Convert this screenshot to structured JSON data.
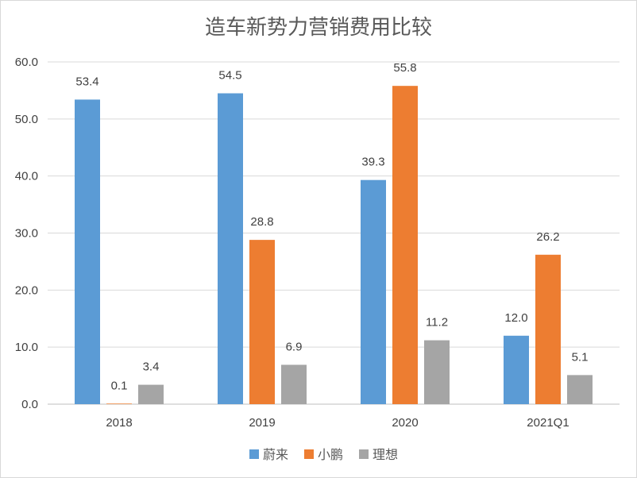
{
  "chart_data": {
    "type": "bar",
    "title": "造车新势力营销费用比较",
    "categories": [
      "2018",
      "2019",
      "2020",
      "2021Q1"
    ],
    "series": [
      {
        "name": "蔚来",
        "color": "#5b9bd5",
        "values": [
          53.4,
          54.5,
          39.3,
          12.0
        ]
      },
      {
        "name": "小鹏",
        "color": "#ed7d31",
        "values": [
          0.1,
          28.8,
          55.8,
          26.2
        ]
      },
      {
        "name": "理想",
        "color": "#a5a5a5",
        "values": [
          3.4,
          6.9,
          11.2,
          5.1
        ]
      }
    ],
    "ylim": [
      0,
      60
    ],
    "yticks": [
      "0.0",
      "10.0",
      "20.0",
      "30.0",
      "40.0",
      "50.0",
      "60.0"
    ],
    "data_labels": [
      [
        "53.4",
        "54.5",
        "39.3",
        "12.0"
      ],
      [
        "0.1",
        "28.8",
        "55.8",
        "26.2"
      ],
      [
        "3.4",
        "6.9",
        "11.2",
        "5.1"
      ]
    ],
    "grid": true,
    "legend": "bottom"
  }
}
